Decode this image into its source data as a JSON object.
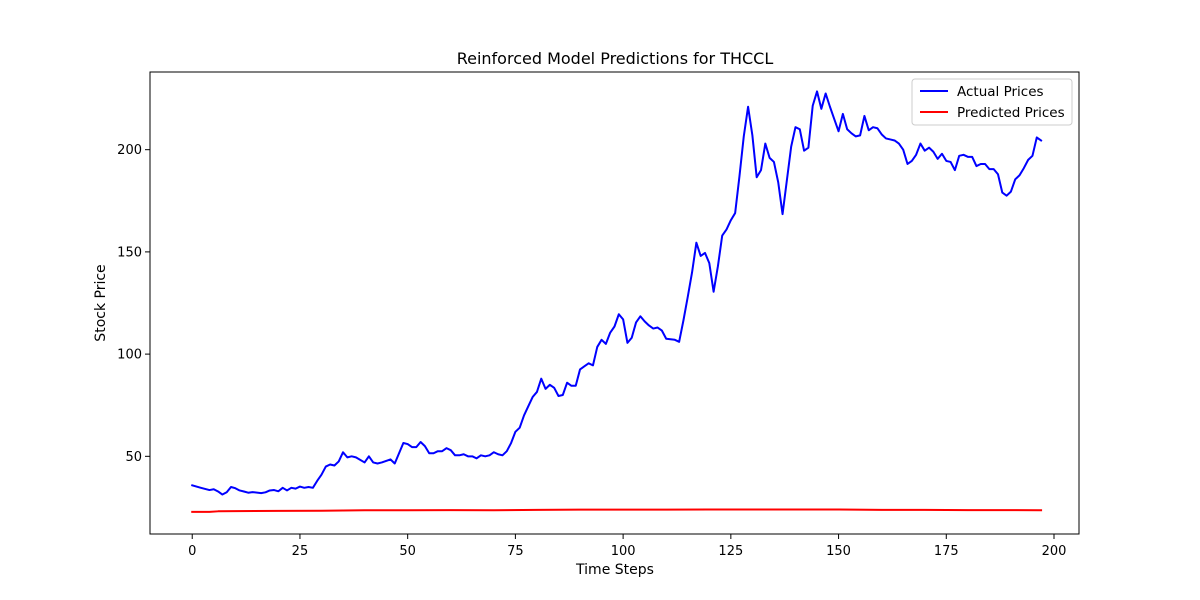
{
  "chart_data": {
    "type": "line",
    "title": "Reinforced Model Predictions for THCCL",
    "xlabel": "Time Steps",
    "ylabel": "Stock Price",
    "xlim": [
      -9.8,
      205.8
    ],
    "ylim": [
      12.0,
      238.0
    ],
    "xticks": [
      0,
      25,
      50,
      75,
      100,
      125,
      150,
      175,
      200
    ],
    "yticks": [
      50,
      100,
      150,
      200
    ],
    "grid": false,
    "legend_position": "upper right",
    "series": [
      {
        "name": "Actual Prices",
        "color": "#0000ff",
        "points": [
          [
            0,
            35.8
          ],
          [
            2,
            34.6
          ],
          [
            4,
            33.5
          ],
          [
            5,
            33.9
          ],
          [
            6,
            32.8
          ],
          [
            7,
            31.3
          ],
          [
            8,
            32.4
          ],
          [
            9,
            35.0
          ],
          [
            10,
            34.4
          ],
          [
            11,
            33.3
          ],
          [
            12,
            32.8
          ],
          [
            13,
            32.2
          ],
          [
            14,
            32.5
          ],
          [
            16,
            32.0
          ],
          [
            17,
            32.4
          ],
          [
            18,
            33.3
          ],
          [
            19,
            33.5
          ],
          [
            20,
            32.9
          ],
          [
            21,
            34.6
          ],
          [
            22,
            33.3
          ],
          [
            23,
            34.6
          ],
          [
            24,
            34.2
          ],
          [
            25,
            35.2
          ],
          [
            26,
            34.6
          ],
          [
            27,
            35.0
          ],
          [
            28,
            34.6
          ],
          [
            29,
            38.0
          ],
          [
            30,
            41.0
          ],
          [
            31,
            45.0
          ],
          [
            32,
            46.0
          ],
          [
            33,
            45.5
          ],
          [
            34,
            47.5
          ],
          [
            35,
            52.0
          ],
          [
            36,
            49.5
          ],
          [
            37,
            50.0
          ],
          [
            38,
            49.5
          ],
          [
            40,
            47.0
          ],
          [
            41,
            50.0
          ],
          [
            42,
            47.0
          ],
          [
            43,
            46.5
          ],
          [
            44,
            47.0
          ],
          [
            46,
            48.5
          ],
          [
            47,
            46.5
          ],
          [
            48,
            51.5
          ],
          [
            49,
            56.5
          ],
          [
            50,
            56.0
          ],
          [
            51,
            54.5
          ],
          [
            52,
            54.5
          ],
          [
            53,
            57.0
          ],
          [
            54,
            55.0
          ],
          [
            55,
            51.5
          ],
          [
            56,
            51.5
          ],
          [
            57,
            52.5
          ],
          [
            58,
            52.5
          ],
          [
            59,
            54.0
          ],
          [
            60,
            53.0
          ],
          [
            61,
            50.5
          ],
          [
            62,
            50.5
          ],
          [
            63,
            51.0
          ],
          [
            64,
            50.0
          ],
          [
            65,
            50.0
          ],
          [
            66,
            49.0
          ],
          [
            67,
            50.5
          ],
          [
            68,
            50.0
          ],
          [
            69,
            50.5
          ],
          [
            70,
            52.0
          ],
          [
            71,
            51.0
          ],
          [
            72,
            50.5
          ],
          [
            73,
            52.5
          ],
          [
            74,
            56.5
          ],
          [
            75,
            62.0
          ],
          [
            76,
            64.0
          ],
          [
            77,
            70.0
          ],
          [
            78,
            74.5
          ],
          [
            79,
            79.0
          ],
          [
            80,
            81.5
          ],
          [
            81,
            88.0
          ],
          [
            82,
            83.0
          ],
          [
            83,
            85.0
          ],
          [
            84,
            83.5
          ],
          [
            85,
            79.5
          ],
          [
            86,
            80.0
          ],
          [
            87,
            86.0
          ],
          [
            88,
            84.5
          ],
          [
            89,
            84.5
          ],
          [
            90,
            92.5
          ],
          [
            91,
            94.0
          ],
          [
            92,
            95.5
          ],
          [
            93,
            94.5
          ],
          [
            94,
            103.5
          ],
          [
            95,
            107.0
          ],
          [
            96,
            105.0
          ],
          [
            97,
            110.5
          ],
          [
            98,
            113.5
          ],
          [
            99,
            119.5
          ],
          [
            100,
            117.0
          ],
          [
            101,
            105.5
          ],
          [
            102,
            108.0
          ],
          [
            103,
            115.5
          ],
          [
            104,
            118.5
          ],
          [
            105,
            116.0
          ],
          [
            106,
            114.0
          ],
          [
            107,
            112.5
          ],
          [
            108,
            113.0
          ],
          [
            109,
            111.5
          ],
          [
            110,
            107.5
          ],
          [
            112,
            107.0
          ],
          [
            113,
            106.0
          ],
          [
            114,
            116.5
          ],
          [
            115,
            128.0
          ],
          [
            116,
            140.0
          ],
          [
            117,
            154.5
          ],
          [
            118,
            148.0
          ],
          [
            119,
            149.5
          ],
          [
            120,
            144.5
          ],
          [
            121,
            130.5
          ],
          [
            122,
            143.0
          ],
          [
            123,
            158.0
          ],
          [
            124,
            161.0
          ],
          [
            125,
            165.5
          ],
          [
            126,
            169.0
          ],
          [
            127,
            187.0
          ],
          [
            128,
            206.5
          ],
          [
            129,
            221.0
          ],
          [
            130,
            207.0
          ],
          [
            131,
            186.5
          ],
          [
            132,
            190.0
          ],
          [
            133,
            203.0
          ],
          [
            134,
            196.0
          ],
          [
            135,
            194.0
          ],
          [
            136,
            184.0
          ],
          [
            137,
            168.5
          ],
          [
            138,
            185.0
          ],
          [
            139,
            201.5
          ],
          [
            140,
            211.0
          ],
          [
            141,
            210.0
          ],
          [
            142,
            199.5
          ],
          [
            143,
            201.0
          ],
          [
            144,
            221.5
          ],
          [
            145,
            228.5
          ],
          [
            146,
            220.0
          ],
          [
            147,
            227.5
          ],
          [
            148,
            221.0
          ],
          [
            149,
            215.0
          ],
          [
            150,
            209.0
          ],
          [
            151,
            217.5
          ],
          [
            152,
            210.0
          ],
          [
            153,
            208.0
          ],
          [
            154,
            206.5
          ],
          [
            155,
            207.0
          ],
          [
            156,
            216.5
          ],
          [
            157,
            209.5
          ],
          [
            158,
            211.0
          ],
          [
            159,
            210.5
          ],
          [
            160,
            207.5
          ],
          [
            161,
            205.5
          ],
          [
            162,
            205.0
          ],
          [
            163,
            204.5
          ],
          [
            164,
            203.0
          ],
          [
            165,
            200.0
          ],
          [
            166,
            193.0
          ],
          [
            167,
            194.5
          ],
          [
            168,
            197.5
          ],
          [
            169,
            203.0
          ],
          [
            170,
            199.5
          ],
          [
            171,
            201.0
          ],
          [
            172,
            199.0
          ],
          [
            173,
            195.5
          ],
          [
            174,
            198.0
          ],
          [
            175,
            194.5
          ],
          [
            176,
            194.0
          ],
          [
            177,
            190.0
          ],
          [
            178,
            197.0
          ],
          [
            179,
            197.5
          ],
          [
            180,
            196.5
          ],
          [
            181,
            196.5
          ],
          [
            182,
            192.0
          ],
          [
            183,
            193.0
          ],
          [
            184,
            193.0
          ],
          [
            185,
            190.5
          ],
          [
            186,
            190.5
          ],
          [
            187,
            188.0
          ],
          [
            188,
            179.0
          ],
          [
            189,
            177.5
          ],
          [
            190,
            179.5
          ],
          [
            191,
            185.5
          ],
          [
            192,
            187.5
          ],
          [
            193,
            191.0
          ],
          [
            194,
            195.0
          ],
          [
            195,
            197.0
          ],
          [
            196,
            206.0
          ],
          [
            197,
            204.5
          ]
        ]
      },
      {
        "name": "Predicted Prices",
        "color": "#ff0000",
        "points": [
          [
            0,
            22.8
          ],
          [
            4,
            22.8
          ],
          [
            6,
            23.1
          ],
          [
            10,
            23.2
          ],
          [
            20,
            23.3
          ],
          [
            30,
            23.4
          ],
          [
            40,
            23.6
          ],
          [
            50,
            23.6
          ],
          [
            60,
            23.7
          ],
          [
            70,
            23.6
          ],
          [
            80,
            23.8
          ],
          [
            90,
            23.9
          ],
          [
            100,
            23.9
          ],
          [
            110,
            23.9
          ],
          [
            120,
            24.0
          ],
          [
            130,
            24.0
          ],
          [
            140,
            24.0
          ],
          [
            150,
            24.0
          ],
          [
            160,
            23.8
          ],
          [
            170,
            23.8
          ],
          [
            180,
            23.7
          ],
          [
            190,
            23.7
          ],
          [
            197,
            23.6
          ]
        ]
      }
    ]
  }
}
